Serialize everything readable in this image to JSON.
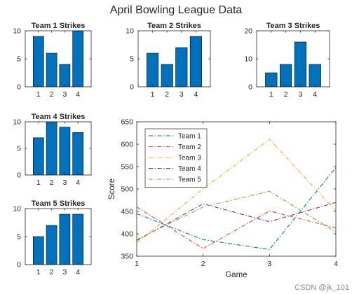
{
  "figure_title": "April Bowling League Data",
  "watermark": "CSDN @jk_101",
  "colors": {
    "bar": "#0072BD",
    "line_series": [
      "#0072BD",
      "#D95319",
      "#EDB120",
      "#7E2F8E",
      "#77AC30"
    ]
  },
  "chart_data": [
    {
      "type": "bar",
      "title": "Team 1 Strikes",
      "categories": [
        "1",
        "2",
        "3",
        "4"
      ],
      "values": [
        9,
        6,
        4,
        10
      ],
      "ylim": [
        0,
        10
      ],
      "yticks": [
        0,
        5,
        10
      ]
    },
    {
      "type": "bar",
      "title": "Team 2 Strikes",
      "categories": [
        "1",
        "2",
        "3",
        "4"
      ],
      "values": [
        6,
        4,
        7,
        9
      ],
      "ylim": [
        0,
        10
      ],
      "yticks": [
        0,
        5,
        10
      ]
    },
    {
      "type": "bar",
      "title": "Team 3 Strikes",
      "categories": [
        "1",
        "2",
        "3",
        "4"
      ],
      "values": [
        5,
        8,
        16,
        8
      ],
      "ylim": [
        0,
        20
      ],
      "yticks": [
        0,
        10,
        20
      ]
    },
    {
      "type": "bar",
      "title": "Team 4 Strikes",
      "categories": [
        "1",
        "2",
        "3",
        "4"
      ],
      "values": [
        7,
        10,
        9,
        8
      ],
      "ylim": [
        0,
        10
      ],
      "yticks": [
        0,
        5,
        10
      ]
    },
    {
      "type": "bar",
      "title": "Team 5 Strikes",
      "categories": [
        "1",
        "2",
        "3",
        "4"
      ],
      "values": [
        5,
        7,
        9,
        9
      ],
      "ylim": [
        0,
        10
      ],
      "yticks": [
        0,
        5,
        10
      ]
    },
    {
      "type": "line",
      "xlabel": "Game",
      "ylabel": "Score",
      "x": [
        1,
        2,
        3,
        4
      ],
      "xlim": [
        1,
        4
      ],
      "ylim": [
        350,
        650
      ],
      "yticks": [
        350,
        400,
        450,
        500,
        550,
        600,
        650
      ],
      "line_style": "dash-dot",
      "legend_position": "top-left",
      "series": [
        {
          "name": "Team 1",
          "values": [
            445,
            387,
            365,
            548
          ]
        },
        {
          "name": "Team 2",
          "values": [
            460,
            367,
            451,
            413
          ]
        },
        {
          "name": "Team 3",
          "values": [
            380,
            500,
            611,
            451
          ]
        },
        {
          "name": "Team 4",
          "values": [
            385,
            467,
            427,
            470
          ]
        },
        {
          "name": "Team 5",
          "values": [
            387,
            460,
            495,
            404
          ]
        }
      ]
    }
  ]
}
